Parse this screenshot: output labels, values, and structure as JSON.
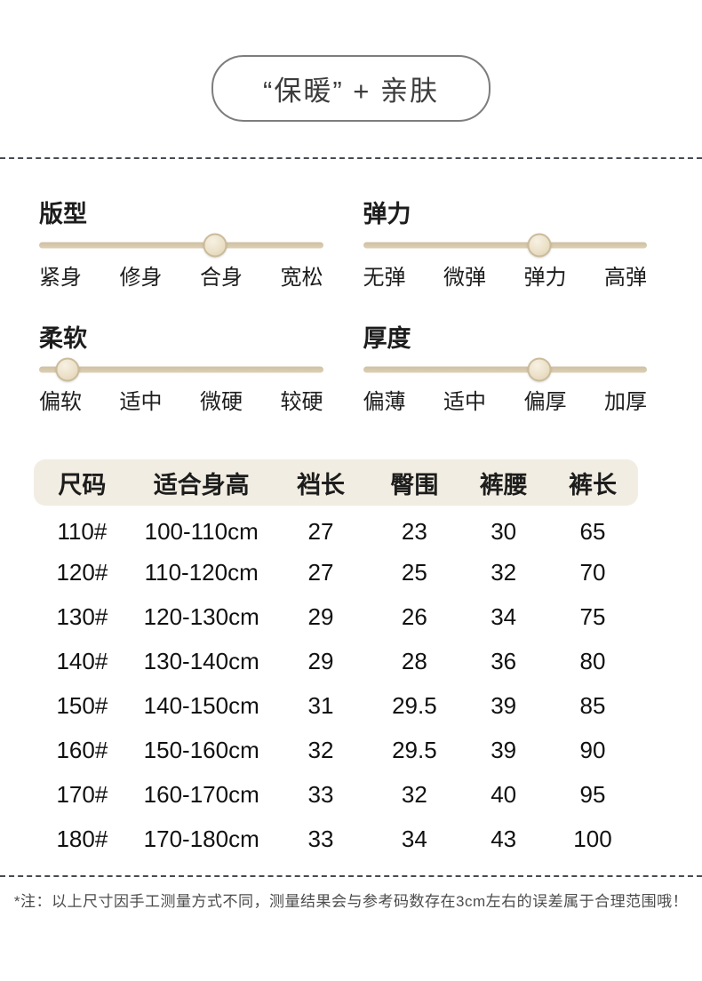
{
  "badge": {
    "text": "“保暖” + 亲肤"
  },
  "sliders": [
    {
      "title": "版型",
      "labels": [
        "紧身",
        "修身",
        "合身",
        "宽松"
      ],
      "selected": "合身",
      "position_pct": 62
    },
    {
      "title": "弹力",
      "labels": [
        "无弹",
        "微弹",
        "弹力",
        "高弹"
      ],
      "selected": "弹力",
      "position_pct": 62
    },
    {
      "title": "柔软",
      "labels": [
        "偏软",
        "适中",
        "微硬",
        "较硬"
      ],
      "selected": "偏软",
      "position_pct": 10
    },
    {
      "title": "厚度",
      "labels": [
        "偏薄",
        "适中",
        "偏厚",
        "加厚"
      ],
      "selected": "偏厚",
      "position_pct": 62
    }
  ],
  "size_table": {
    "headers": [
      "尺码",
      "适合身高",
      "裆长",
      "臀围",
      "裤腰",
      "裤长"
    ],
    "rows": [
      [
        "110#",
        "100-110cm",
        "27",
        "23",
        "30",
        "65"
      ],
      [
        "120#",
        "110-120cm",
        "27",
        "25",
        "32",
        "70"
      ],
      [
        "130#",
        "120-130cm",
        "29",
        "26",
        "34",
        "75"
      ],
      [
        "140#",
        "130-140cm",
        "29",
        "28",
        "36",
        "80"
      ],
      [
        "150#",
        "140-150cm",
        "31",
        "29.5",
        "39",
        "85"
      ],
      [
        "160#",
        "150-160cm",
        "32",
        "29.5",
        "39",
        "90"
      ],
      [
        "170#",
        "160-170cm",
        "33",
        "32",
        "40",
        "95"
      ],
      [
        "180#",
        "170-180cm",
        "33",
        "34",
        "43",
        "100"
      ]
    ]
  },
  "footnote": "*注：以上尺寸因手工测量方式不同，测量结果会与参考码数存在3cm左右的误差属于合理范围哦！",
  "colors": {
    "track": "#d8c9ac",
    "knob_fill": "#ece1c9",
    "knob_border": "#cabb9b",
    "header_bg": "#f2ede2",
    "divider": "#474c52"
  }
}
